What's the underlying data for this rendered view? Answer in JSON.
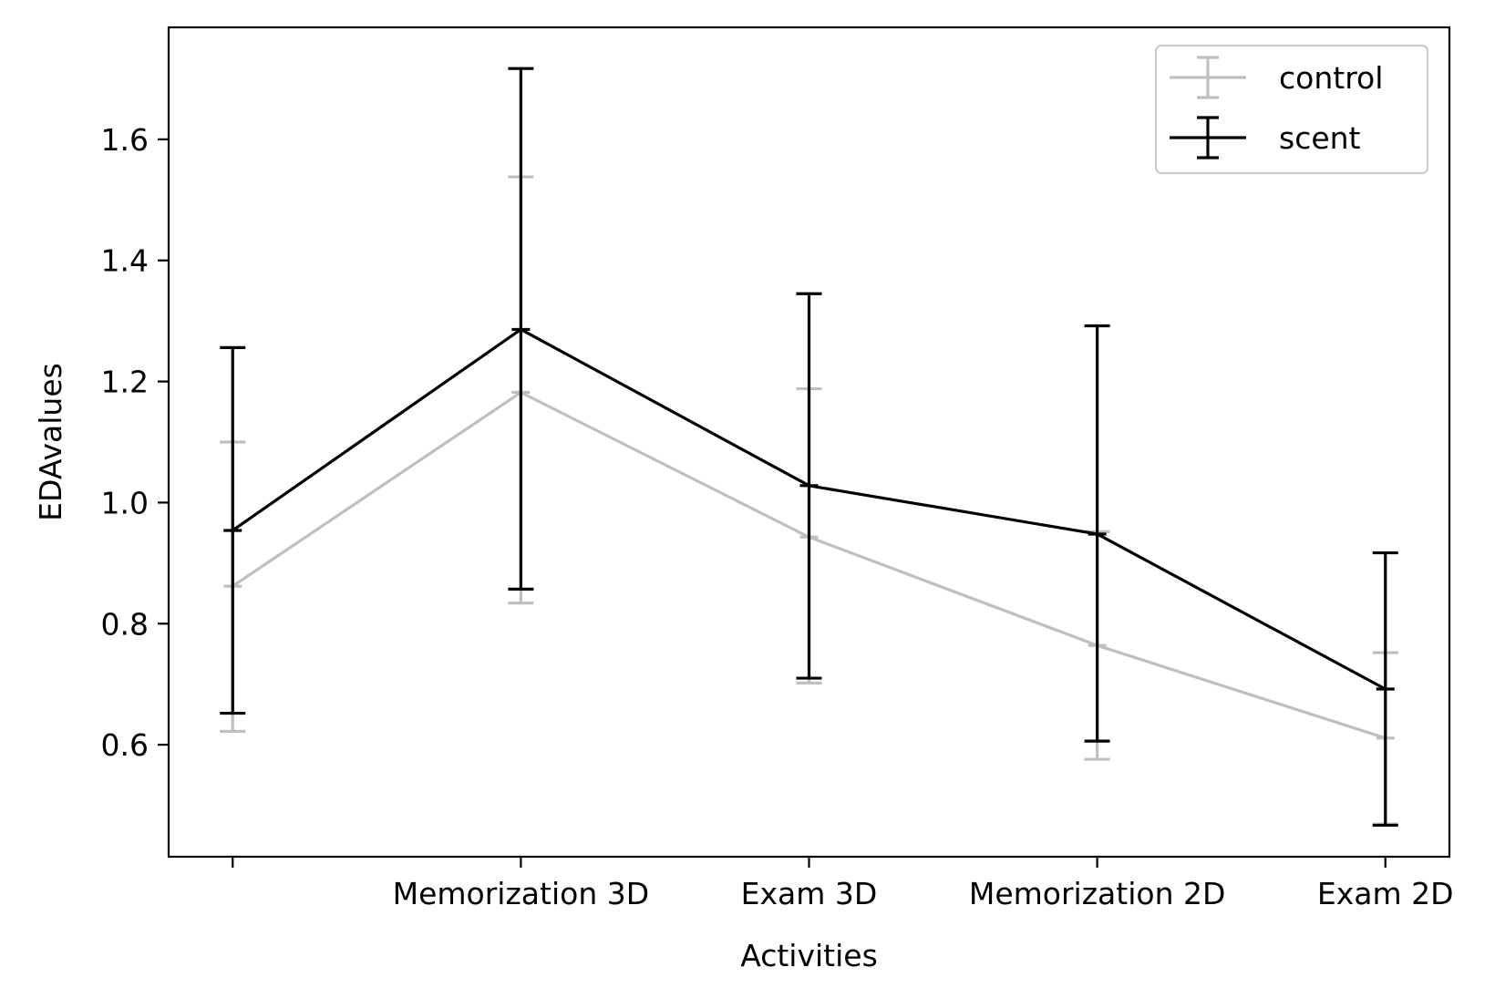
{
  "chart_data": {
    "type": "line",
    "xlabel": "Activities",
    "ylabel": "EDAvalues",
    "categories": [
      "",
      "Memorization 3D",
      "Exam 3D",
      "Memorization 2D",
      "Exam 2D"
    ],
    "ylim": [
      0.415,
      1.785
    ],
    "yticks": [
      0.6,
      0.8,
      1.0,
      1.2,
      1.4,
      1.6
    ],
    "ytick_labels": [
      "0.6",
      "0.8",
      "1.0",
      "1.2",
      "1.4",
      "1.6"
    ],
    "grid": false,
    "legend_position": "top-right",
    "error_bars": true,
    "series": [
      {
        "name": "control",
        "color": "#bfbfbf",
        "values": [
          0.862,
          1.182,
          0.943,
          0.764,
          0.611
        ],
        "err_low": [
          0.622,
          0.834,
          0.702,
          0.576,
          0.469
        ],
        "err_high": [
          1.1,
          1.538,
          1.188,
          0.952,
          0.752
        ]
      },
      {
        "name": "scent",
        "color": "#000000",
        "values": [
          0.954,
          1.286,
          1.028,
          0.948,
          0.692
        ],
        "err_low": [
          0.652,
          0.857,
          0.71,
          0.606,
          0.467
        ],
        "err_high": [
          1.256,
          1.717,
          1.345,
          1.292,
          0.917
        ]
      }
    ]
  }
}
